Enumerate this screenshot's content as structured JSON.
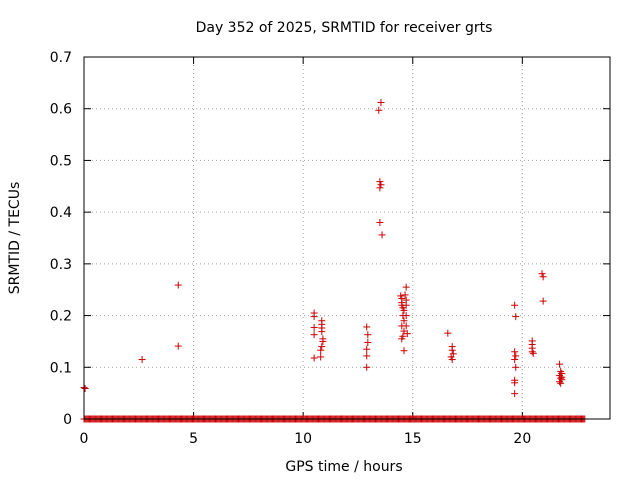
{
  "chart_data": {
    "type": "scatter",
    "title": "Day 352 of 2025, SRMTID for receiver grts",
    "xlabel": "GPS time / hours",
    "ylabel": "SRMTID / TECUs",
    "xlim": [
      0,
      24
    ],
    "ylim": [
      0,
      0.7
    ],
    "xticks": [
      0,
      5,
      10,
      15,
      20
    ],
    "yticks": [
      0,
      0.1,
      0.2,
      0.3,
      0.4,
      0.5,
      0.6,
      0.7
    ],
    "xtick_labels": [
      "0",
      "5",
      "10",
      "15",
      "20"
    ],
    "ytick_labels": [
      "0",
      "0.1",
      "0.2",
      "0.3",
      "0.4",
      "0.5",
      "0.6",
      "0.7"
    ],
    "grid": true,
    "marker": "+",
    "color": "#cc0000",
    "zero_baseline": {
      "x_start": 0.0,
      "x_end": 22.85,
      "x_step": 0.05,
      "y": 0
    },
    "series": [
      {
        "name": "SRMTID",
        "points": [
          [
            0.0,
            0.061
          ],
          [
            0.05,
            0.059
          ],
          [
            2.65,
            0.115
          ],
          [
            4.3,
            0.259
          ],
          [
            4.3,
            0.141
          ],
          [
            10.5,
            0.205
          ],
          [
            10.5,
            0.198
          ],
          [
            10.5,
            0.177
          ],
          [
            10.5,
            0.163
          ],
          [
            10.5,
            0.118
          ],
          [
            10.85,
            0.19
          ],
          [
            10.85,
            0.183
          ],
          [
            10.85,
            0.176
          ],
          [
            10.85,
            0.169
          ],
          [
            10.9,
            0.155
          ],
          [
            10.9,
            0.15
          ],
          [
            10.85,
            0.14
          ],
          [
            10.8,
            0.133
          ],
          [
            10.8,
            0.12
          ],
          [
            12.9,
            0.178
          ],
          [
            12.95,
            0.163
          ],
          [
            12.95,
            0.148
          ],
          [
            12.9,
            0.135
          ],
          [
            12.9,
            0.122
          ],
          [
            12.9,
            0.1
          ],
          [
            13.45,
            0.597
          ],
          [
            13.55,
            0.612
          ],
          [
            13.5,
            0.459
          ],
          [
            13.55,
            0.453
          ],
          [
            13.5,
            0.447
          ],
          [
            13.5,
            0.38
          ],
          [
            13.6,
            0.356
          ],
          [
            14.45,
            0.238
          ],
          [
            14.5,
            0.233
          ],
          [
            14.5,
            0.225
          ],
          [
            14.5,
            0.22
          ],
          [
            14.55,
            0.215
          ],
          [
            14.6,
            0.21
          ],
          [
            14.55,
            0.2
          ],
          [
            14.6,
            0.19
          ],
          [
            14.5,
            0.18
          ],
          [
            14.6,
            0.17
          ],
          [
            14.55,
            0.16
          ],
          [
            14.5,
            0.155
          ],
          [
            14.6,
            0.132
          ],
          [
            14.7,
            0.255
          ],
          [
            14.65,
            0.24
          ],
          [
            14.7,
            0.23
          ],
          [
            14.7,
            0.22
          ],
          [
            14.7,
            0.2
          ],
          [
            14.7,
            0.18
          ],
          [
            14.75,
            0.165
          ],
          [
            16.6,
            0.166
          ],
          [
            16.8,
            0.14
          ],
          [
            16.8,
            0.133
          ],
          [
            16.85,
            0.126
          ],
          [
            16.75,
            0.12
          ],
          [
            16.8,
            0.115
          ],
          [
            19.65,
            0.22
          ],
          [
            19.7,
            0.198
          ],
          [
            19.65,
            0.13
          ],
          [
            19.7,
            0.122
          ],
          [
            19.65,
            0.115
          ],
          [
            19.7,
            0.1
          ],
          [
            19.65,
            0.075
          ],
          [
            19.65,
            0.07
          ],
          [
            19.65,
            0.049
          ],
          [
            20.45,
            0.151
          ],
          [
            20.45,
            0.144
          ],
          [
            20.45,
            0.137
          ],
          [
            20.45,
            0.13
          ],
          [
            20.5,
            0.127
          ],
          [
            20.9,
            0.281
          ],
          [
            20.95,
            0.275
          ],
          [
            20.95,
            0.228
          ],
          [
            21.7,
            0.106
          ],
          [
            21.75,
            0.092
          ],
          [
            21.8,
            0.088
          ],
          [
            21.7,
            0.084
          ],
          [
            21.75,
            0.079
          ],
          [
            21.8,
            0.076
          ],
          [
            21.7,
            0.072
          ],
          [
            21.75,
            0.069
          ],
          [
            21.8,
            0.081
          ]
        ]
      }
    ]
  }
}
